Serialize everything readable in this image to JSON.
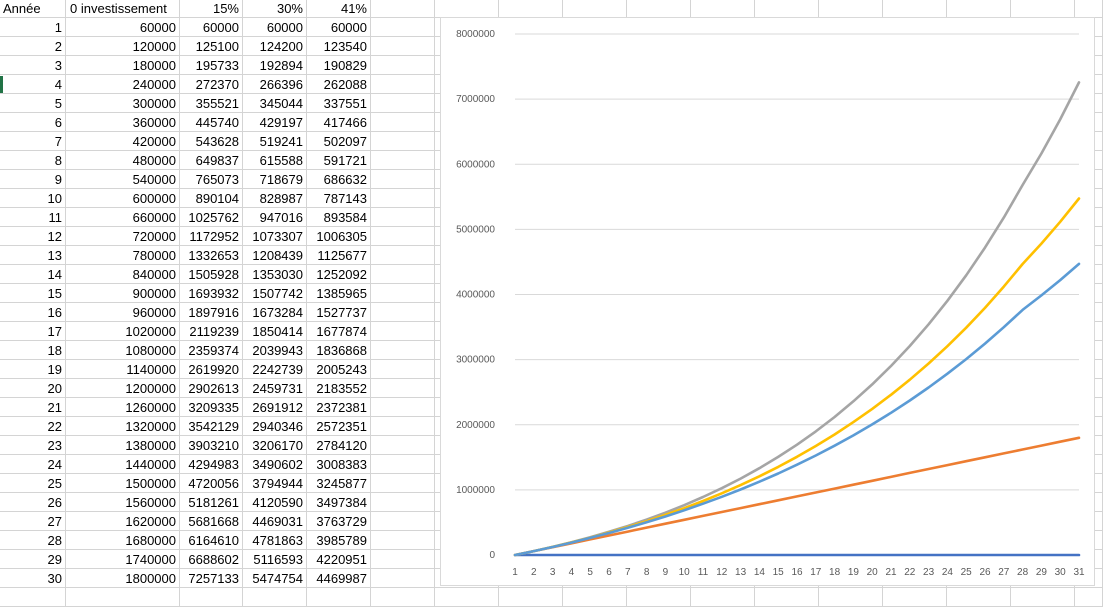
{
  "sheet": {
    "headers": [
      "Année",
      "0 investissement",
      "15%",
      "30%",
      "41%"
    ],
    "rows": [
      [
        "1",
        "60000",
        "60000",
        "60000",
        "60000"
      ],
      [
        "2",
        "120000",
        "125100",
        "124200",
        "123540"
      ],
      [
        "3",
        "180000",
        "195733",
        "192894",
        "190829"
      ],
      [
        "4",
        "240000",
        "272370",
        "266396",
        "262088"
      ],
      [
        "5",
        "300000",
        "355521",
        "345044",
        "337551"
      ],
      [
        "6",
        "360000",
        "445740",
        "429197",
        "417466"
      ],
      [
        "7",
        "420000",
        "543628",
        "519241",
        "502097"
      ],
      [
        "8",
        "480000",
        "649837",
        "615588",
        "591721"
      ],
      [
        "9",
        "540000",
        "765073",
        "718679",
        "686632"
      ],
      [
        "10",
        "600000",
        "890104",
        "828987",
        "787143"
      ],
      [
        "11",
        "660000",
        "1025762",
        "947016",
        "893584"
      ],
      [
        "12",
        "720000",
        "1172952",
        "1073307",
        "1006305"
      ],
      [
        "13",
        "780000",
        "1332653",
        "1208439",
        "1125677"
      ],
      [
        "14",
        "840000",
        "1505928",
        "1353030",
        "1252092"
      ],
      [
        "15",
        "900000",
        "1693932",
        "1507742",
        "1385965"
      ],
      [
        "16",
        "960000",
        "1897916",
        "1673284",
        "1527737"
      ],
      [
        "17",
        "1020000",
        "2119239",
        "1850414",
        "1677874"
      ],
      [
        "18",
        "1080000",
        "2359374",
        "2039943",
        "1836868"
      ],
      [
        "19",
        "1140000",
        "2619920",
        "2242739",
        "2005243"
      ],
      [
        "20",
        "1200000",
        "2902613",
        "2459731",
        "2183552"
      ],
      [
        "21",
        "1260000",
        "3209335",
        "2691912",
        "2372381"
      ],
      [
        "22",
        "1320000",
        "3542129",
        "2940346",
        "2572351"
      ],
      [
        "23",
        "1380000",
        "3903210",
        "3206170",
        "2784120"
      ],
      [
        "24",
        "1440000",
        "4294983",
        "3490602",
        "3008383"
      ],
      [
        "25",
        "1500000",
        "4720056",
        "3794944",
        "3245877"
      ],
      [
        "26",
        "1560000",
        "5181261",
        "4120590",
        "3497384"
      ],
      [
        "27",
        "1620000",
        "5681668",
        "4469031",
        "3763729"
      ],
      [
        "28",
        "1680000",
        "6164610",
        "4781863",
        "3985789"
      ],
      [
        "29",
        "1740000",
        "6688602",
        "5116593",
        "4220951"
      ],
      [
        "30",
        "1800000",
        "7257133",
        "5474754",
        "4469987"
      ]
    ]
  },
  "chart_data": {
    "type": "line",
    "x": [
      "1",
      "2",
      "3",
      "4",
      "5",
      "6",
      "7",
      "8",
      "9",
      "10",
      "11",
      "12",
      "13",
      "14",
      "15",
      "16",
      "17",
      "18",
      "19",
      "20",
      "21",
      "22",
      "23",
      "24",
      "25",
      "26",
      "27",
      "28",
      "29",
      "30",
      "31"
    ],
    "ylim": [
      0,
      8000000
    ],
    "yticks": [
      "0",
      "1000000",
      "2000000",
      "3000000",
      "4000000",
      "5000000",
      "6000000",
      "7000000",
      "8000000"
    ],
    "grid": true,
    "series": [
      {
        "color": "#4472C4",
        "values": [
          0,
          0,
          0,
          0,
          0,
          0,
          0,
          0,
          0,
          0,
          0,
          0,
          0,
          0,
          0,
          0,
          0,
          0,
          0,
          0,
          0,
          0,
          0,
          0,
          0,
          0,
          0,
          0,
          0,
          0,
          0
        ]
      },
      {
        "color": "#ED7D31",
        "values": [
          0,
          60000,
          120000,
          180000,
          240000,
          300000,
          360000,
          420000,
          480000,
          540000,
          600000,
          660000,
          720000,
          780000,
          840000,
          900000,
          960000,
          1020000,
          1080000,
          1140000,
          1200000,
          1260000,
          1320000,
          1380000,
          1440000,
          1500000,
          1560000,
          1620000,
          1680000,
          1740000,
          1800000
        ]
      },
      {
        "color": "#A5A5A5",
        "values": [
          0,
          60000,
          125100,
          195733,
          272370,
          355521,
          445740,
          543628,
          649837,
          765073,
          890104,
          1025762,
          1172952,
          1332653,
          1505928,
          1693932,
          1897916,
          2119239,
          2359374,
          2619920,
          2902613,
          3209335,
          3542129,
          3903210,
          4294983,
          4720056,
          5181261,
          5681668,
          6164610,
          6688602,
          7257133
        ]
      },
      {
        "color": "#FFC000",
        "values": [
          0,
          60000,
          124200,
          192894,
          266396,
          345044,
          429197,
          519241,
          615588,
          718679,
          828987,
          947016,
          1073307,
          1208439,
          1353030,
          1507742,
          1673284,
          1850414,
          2039943,
          2242739,
          2459731,
          2691912,
          2940346,
          3206170,
          3490602,
          3794944,
          4120590,
          4469031,
          4781863,
          5116593,
          5474754
        ]
      },
      {
        "color": "#5B9BD5",
        "values": [
          0,
          60000,
          123540,
          190829,
          262088,
          337551,
          417466,
          502097,
          591721,
          686632,
          787143,
          893584,
          1006305,
          1125677,
          1252092,
          1385965,
          1527737,
          1677874,
          1836868,
          2005243,
          2183552,
          2372381,
          2572351,
          2784120,
          3008383,
          3245877,
          3497384,
          3763729,
          3985789,
          4220951,
          4469987
        ]
      }
    ]
  }
}
